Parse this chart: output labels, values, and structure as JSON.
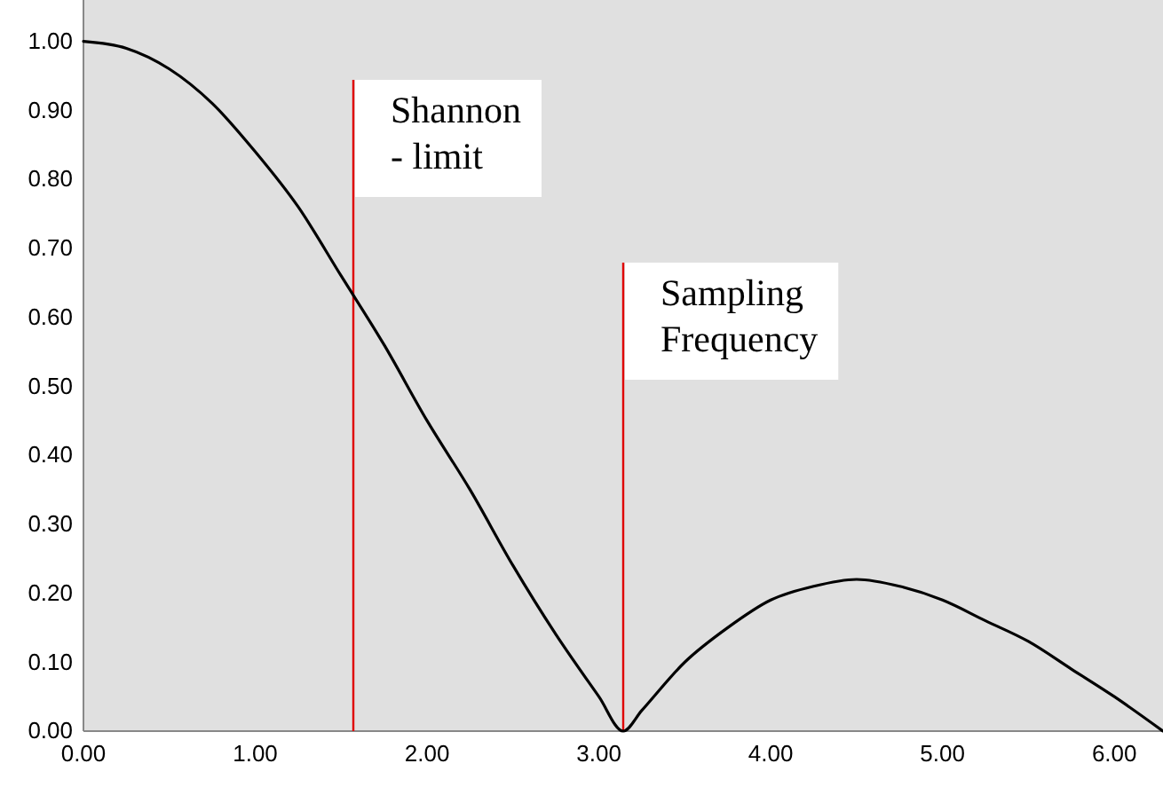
{
  "chart_data": {
    "type": "line",
    "x": [
      0,
      0.25,
      0.5,
      0.75,
      1,
      1.25,
      1.5,
      1.75,
      2,
      2.25,
      2.5,
      2.75,
      3,
      3.1416,
      3.25,
      3.5,
      3.75,
      4,
      4.25,
      4.5,
      4.75,
      5,
      5.25,
      5.5,
      5.75,
      6,
      6.2832
    ],
    "series": [
      {
        "color": "#000000",
        "values": [
          1,
          0.99,
          0.96,
          0.91,
          0.84,
          0.76,
          0.66,
          0.56,
          0.45,
          0.35,
          0.24,
          0.14,
          0.05,
          0,
          0.03,
          0.1,
          0.15,
          0.19,
          0.21,
          0.22,
          0.21,
          0.19,
          0.16,
          0.13,
          0.09,
          0.05,
          0
        ]
      }
    ],
    "xlim": [
      0,
      6.2832
    ],
    "xticks": [
      {
        "value": 0,
        "label": "0.00"
      },
      {
        "value": 1,
        "label": "1.00"
      },
      {
        "value": 2,
        "label": "2.00"
      },
      {
        "value": 3,
        "label": "3.00"
      },
      {
        "value": 4,
        "label": "4.00"
      },
      {
        "value": 5,
        "label": "5.00"
      },
      {
        "value": 6,
        "label": "6.00"
      }
    ],
    "ylim": [
      0,
      1.06
    ],
    "yticks": [
      {
        "value": 0,
        "label": "0.00"
      },
      {
        "value": 0.1,
        "label": "0.10"
      },
      {
        "value": 0.2,
        "label": "0.20"
      },
      {
        "value": 0.3,
        "label": "0.30"
      },
      {
        "value": 0.4,
        "label": "0.40"
      },
      {
        "value": 0.5,
        "label": "0.50"
      },
      {
        "value": 0.6,
        "label": "0.60"
      },
      {
        "value": 0.7,
        "label": "0.70"
      },
      {
        "value": 0.8,
        "label": "0.80"
      },
      {
        "value": 0.9,
        "label": "0.90"
      },
      {
        "value": 1,
        "label": "1.00"
      }
    ],
    "ref_lines": [
      {
        "axis": "x",
        "value": 1.5708,
        "label": "Shannon\n- limit",
        "color": "#e00000"
      },
      {
        "axis": "x",
        "value": 3.1416,
        "label": "Sampling\nFrequency",
        "color": "#e00000"
      }
    ],
    "marker": "none",
    "line_style": "solid",
    "grid": false
  }
}
